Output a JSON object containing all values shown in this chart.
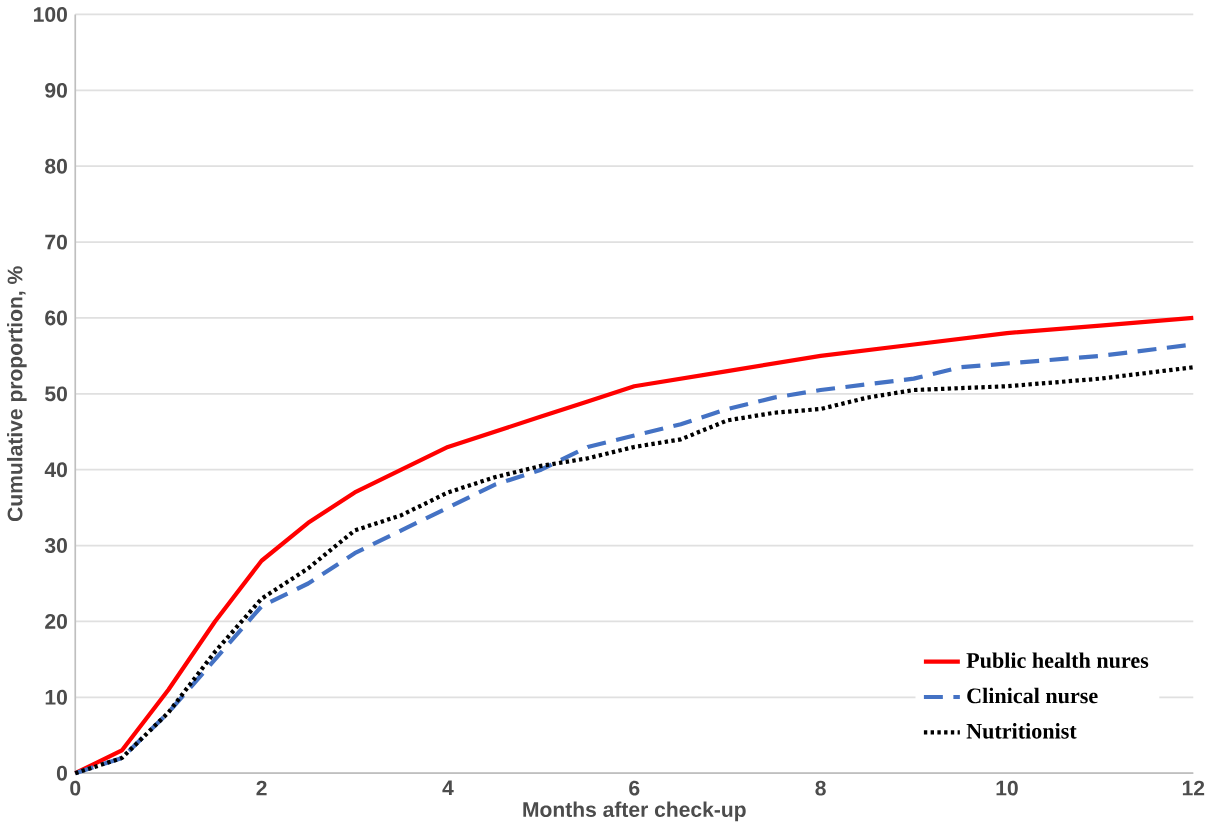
{
  "chart_data": {
    "type": "line",
    "xlabel": "Months after check-up",
    "ylabel": "Cumulative proportion, %",
    "xlim": [
      0,
      12
    ],
    "ylim": [
      0,
      100
    ],
    "xticks": [
      0,
      2,
      4,
      6,
      8,
      10,
      12
    ],
    "yticks": [
      0,
      10,
      20,
      30,
      40,
      50,
      60,
      70,
      80,
      90,
      100
    ],
    "grid": "y",
    "legend": "bottom right",
    "marker": "none",
    "series": [
      {
        "name": "Public health nures",
        "color": "#ff0000",
        "line_style": "solid",
        "x": [
          0,
          0.5,
          1,
          1.5,
          2,
          2.5,
          3,
          3.5,
          4,
          4.5,
          5,
          5.5,
          6,
          7,
          8,
          9,
          10,
          11,
          12
        ],
        "values": [
          0,
          3,
          11,
          20,
          28,
          33,
          37,
          40,
          43,
          45,
          47,
          49,
          51,
          53,
          55,
          56.5,
          58,
          59,
          60
        ]
      },
      {
        "name": "Clinical nurse",
        "color": "#4472c4",
        "line_style": "dashed",
        "x": [
          0,
          0.5,
          1,
          1.5,
          2,
          2.5,
          3,
          3.5,
          4,
          4.5,
          5,
          5.5,
          6,
          6.5,
          7,
          7.5,
          8,
          9,
          9.5,
          10,
          11,
          12
        ],
        "values": [
          0,
          2,
          8,
          15,
          22,
          25,
          29,
          32,
          35,
          38,
          40,
          43,
          44.5,
          46,
          48,
          49.5,
          50.5,
          52,
          53.5,
          54,
          55,
          56.5
        ]
      },
      {
        "name": "Nutritionist",
        "color": "#000000",
        "line_style": "dotted",
        "x": [
          0,
          0.5,
          1,
          1.5,
          2,
          2.5,
          3,
          3.5,
          4,
          4.5,
          5,
          5.5,
          6,
          6.5,
          7,
          7.5,
          8,
          8.5,
          9,
          10,
          11,
          12
        ],
        "values": [
          0,
          2,
          8,
          16,
          23,
          27,
          32,
          34,
          37,
          39,
          40.5,
          41.5,
          43,
          44,
          46.5,
          47.5,
          48,
          49.5,
          50.5,
          51,
          52,
          53.5
        ]
      }
    ]
  }
}
